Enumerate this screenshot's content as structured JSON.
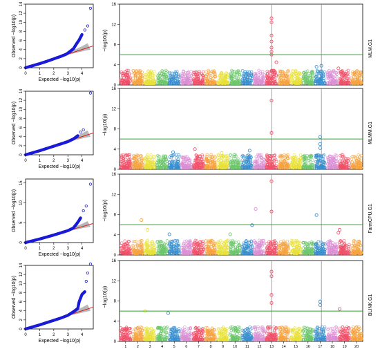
{
  "chart_data": [
    {
      "type": "scatter",
      "panel": "qq",
      "row": "MLM.G1",
      "xlabel": "Expected −log10(p)",
      "ylabel": "Observed −log10(p)",
      "xlim": [
        0,
        4.8
      ],
      "ylim": [
        0,
        14
      ],
      "xticks": [
        "0",
        "1",
        "2",
        "3",
        "4"
      ],
      "yticks": [
        "0",
        "2",
        "4",
        "6",
        "8",
        "10",
        "12",
        "14"
      ],
      "expected_line": true,
      "points": [
        [
          0,
          0
        ],
        [
          0.5,
          0.45
        ],
        [
          1,
          0.9
        ],
        [
          1.5,
          1.4
        ],
        [
          2,
          1.95
        ],
        [
          2.5,
          2.5
        ],
        [
          2.9,
          3.0
        ],
        [
          3.2,
          3.7
        ],
        [
          3.4,
          4.2
        ],
        [
          3.6,
          5.2
        ],
        [
          3.8,
          6.1
        ],
        [
          4.0,
          7.3
        ],
        [
          4.2,
          8.3
        ],
        [
          4.4,
          9.2
        ],
        [
          4.6,
          13.1
        ]
      ]
    },
    {
      "type": "scatter",
      "panel": "qq",
      "row": "MLMM.G1",
      "xlabel": "Expected −log10(p)",
      "ylabel": "Observed −log10(p)",
      "xlim": [
        0,
        4.8
      ],
      "ylim": [
        0,
        14
      ],
      "xticks": [
        "0",
        "1",
        "2",
        "3",
        "4"
      ],
      "yticks": [
        "0",
        "2",
        "4",
        "6",
        "8",
        "10",
        "12",
        "14"
      ],
      "expected_line": true,
      "points": [
        [
          0,
          0
        ],
        [
          0.5,
          0.45
        ],
        [
          1,
          0.9
        ],
        [
          1.5,
          1.4
        ],
        [
          2,
          1.9
        ],
        [
          2.5,
          2.4
        ],
        [
          3.0,
          2.9
        ],
        [
          3.4,
          3.5
        ],
        [
          3.7,
          4.2
        ],
        [
          3.9,
          5.0
        ],
        [
          4.1,
          5.5
        ],
        [
          4.6,
          13.6
        ]
      ]
    },
    {
      "type": "scatter",
      "panel": "qq",
      "row": "FarmCPU.G1",
      "xlabel": "Expected −log10(p)",
      "ylabel": "Observed −log10(p)",
      "xlim": [
        0,
        4.8
      ],
      "ylim": [
        0,
        16
      ],
      "xticks": [
        "0",
        "1",
        "2",
        "3",
        "4"
      ],
      "yticks": [
        "0",
        "5",
        "10",
        "15"
      ],
      "expected_line": true,
      "points": [
        [
          0,
          0
        ],
        [
          0.5,
          0.45
        ],
        [
          1,
          0.9
        ],
        [
          1.5,
          1.4
        ],
        [
          2,
          1.9
        ],
        [
          2.5,
          2.45
        ],
        [
          3.0,
          3.0
        ],
        [
          3.4,
          3.7
        ],
        [
          3.6,
          4.6
        ],
        [
          3.8,
          5.6
        ],
        [
          3.9,
          6.2
        ],
        [
          4.1,
          8.0
        ],
        [
          4.3,
          9.2
        ],
        [
          4.6,
          14.7
        ]
      ]
    },
    {
      "type": "scatter",
      "panel": "qq",
      "row": "BLINK.G1",
      "xlabel": "Expected −log10(p)",
      "ylabel": "Observed −log10(p)",
      "xlim": [
        0,
        4.8
      ],
      "ylim": [
        0,
        14
      ],
      "xticks": [
        "0",
        "1",
        "2",
        "3",
        "4"
      ],
      "yticks": [
        "0",
        "2",
        "4",
        "6",
        "8",
        "10",
        "12",
        "14"
      ],
      "expected_line": true,
      "points": [
        [
          0,
          0
        ],
        [
          0.5,
          0.45
        ],
        [
          1,
          0.9
        ],
        [
          1.5,
          1.4
        ],
        [
          2,
          1.9
        ],
        [
          2.5,
          2.4
        ],
        [
          3.0,
          3.0
        ],
        [
          3.4,
          3.8
        ],
        [
          3.7,
          4.5
        ],
        [
          3.8,
          6.0
        ],
        [
          4.0,
          7.6
        ],
        [
          4.2,
          8.2
        ],
        [
          4.3,
          10.5
        ],
        [
          4.4,
          12.3
        ],
        [
          4.6,
          14.3
        ]
      ]
    },
    {
      "type": "manhattan",
      "panels": [
        {
          "label": "MLM.G1",
          "ylabel": "−log10(p)",
          "ylim": [
            0,
            16
          ],
          "yticks": [
            "0",
            "4",
            "8",
            "12",
            "16"
          ],
          "threshold": 6,
          "hits": [
            [
              13,
              13.2
            ],
            [
              13,
              12.4
            ],
            [
              13,
              9.8
            ],
            [
              13,
              8.6
            ],
            [
              13,
              7.4
            ],
            [
              13,
              6.6
            ],
            [
              13,
              6.0
            ],
            [
              17.1,
              3.8
            ],
            [
              13.4,
              4.5
            ],
            [
              16.7,
              3.6
            ],
            [
              18.5,
              3.3
            ]
          ]
        },
        {
          "label": "MLMM.G1",
          "ylabel": "−log10(p)",
          "ylim": [
            0,
            16
          ],
          "yticks": [
            "0",
            "4",
            "8",
            "12",
            "16"
          ],
          "threshold": 6,
          "hits": [
            [
              13,
              13.6
            ],
            [
              13,
              7.2
            ],
            [
              17,
              6.4
            ],
            [
              17,
              5.0
            ],
            [
              17,
              4.2
            ],
            [
              6.7,
              4.0
            ],
            [
              11.2,
              3.7
            ],
            [
              4.9,
              3.4
            ],
            [
              8.9,
              3.2
            ]
          ]
        },
        {
          "label": "FarmCPU.G1",
          "ylabel": "−log10(p)",
          "ylim": [
            0,
            16
          ],
          "yticks": [
            "0",
            "4",
            "8",
            "12",
            "16"
          ],
          "threshold": 6,
          "hits": [
            [
              13,
              14.6
            ],
            [
              13,
              8.6
            ],
            [
              11.7,
              9.1
            ],
            [
              16.7,
              7.9
            ],
            [
              2.3,
              6.9
            ],
            [
              11.4,
              5.9
            ],
            [
              2.8,
              5.0
            ],
            [
              4.6,
              4.1
            ],
            [
              18.6,
              5.0
            ],
            [
              18.5,
              4.4
            ],
            [
              9.6,
              4.1
            ]
          ]
        },
        {
          "label": "BLINK.G1",
          "ylabel": "−log10(p)",
          "ylim": [
            0,
            16
          ],
          "yticks": [
            "0",
            "4",
            "8",
            "12",
            "16"
          ],
          "threshold": 6,
          "hits": [
            [
              13,
              13.8
            ],
            [
              13,
              12.9
            ],
            [
              13,
              9.2
            ],
            [
              13,
              7.6
            ],
            [
              17,
              7.9
            ],
            [
              17,
              7.2
            ],
            [
              18.6,
              6.4
            ],
            [
              2.6,
              6.0
            ],
            [
              4.5,
              5.6
            ]
          ]
        }
      ],
      "chromosomes": [
        "1",
        "2",
        "3",
        "4",
        "5",
        "6",
        "7",
        "8",
        "9",
        "10",
        "11",
        "12",
        "13",
        "14",
        "15",
        "16",
        "17",
        "18",
        "19",
        "20"
      ],
      "reference_lines_chr": [
        13,
        17.1
      ],
      "colors": [
        "#f05068",
        "#f6a23e",
        "#e8e037",
        "#6cc76c",
        "#3a8fcf",
        "#db8fd3"
      ]
    }
  ]
}
